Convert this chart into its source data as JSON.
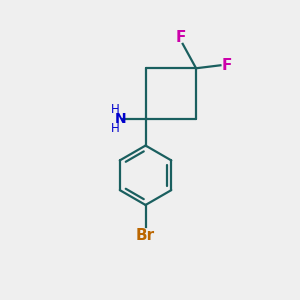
{
  "background_color": "#efefef",
  "bond_color": "#1a5f5f",
  "F_color": "#cc00aa",
  "N_color": "#0000cc",
  "Br_color": "#bb6600",
  "line_width": 1.6,
  "figsize": [
    3.0,
    3.0
  ],
  "dpi": 100,
  "xlim": [
    0,
    10
  ],
  "ylim": [
    0,
    10
  ]
}
